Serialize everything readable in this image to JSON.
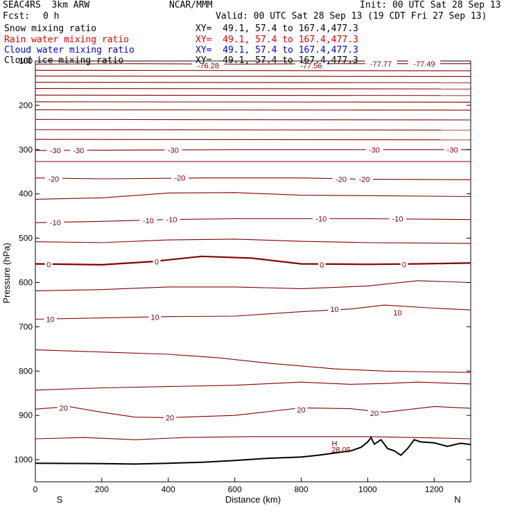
{
  "header": {
    "model": "SEAC4RS  3km ARW",
    "org": "NCAR/MMM",
    "init": "Init: 00 UTC Sat 28 Sep 13",
    "fcst_label": "Fcst:",
    "fcst_value": "0 h",
    "valid": "Valid: 00 UTC Sat 28 Sep 13 (19 CDT Fri 27 Sep 13)"
  },
  "fields": [
    {
      "name": "Snow mixing ratio",
      "xy": "XY=  49.1, 57.4 to 167.4,477.3",
      "color": "#000000"
    },
    {
      "name": "Rain water mixing ratio",
      "xy": "XY=  49.1, 57.4 to 167.4,477.3",
      "color": "#e00000"
    },
    {
      "name": "Cloud water mixing ratio",
      "xy": "XY=  49.1, 57.4 to 167.4,477.3",
      "color": "#0000d8"
    },
    {
      "name": "Cloud ice mixing ratio",
      "xy": "XY=  49.1, 57.4 to 167.4,477.3",
      "color": "#000000"
    }
  ],
  "colors": {
    "contour": "#800000",
    "terrain": "#000000",
    "axis": "#000000"
  },
  "chart_data": {
    "type": "line",
    "title": "",
    "xlabel": "Distance (km)",
    "ylabel": "Pressure (hPa)",
    "xlim": [
      0,
      1310
    ],
    "ylim": [
      1050,
      100
    ],
    "x_ticks": [
      0,
      200,
      400,
      600,
      800,
      1000,
      1200
    ],
    "y_ticks": [
      100,
      200,
      300,
      400,
      500,
      600,
      700,
      800,
      900,
      1000
    ],
    "x_end_labels": {
      "left": "S",
      "right": "N"
    },
    "grid": false,
    "series": [
      {
        "level": "-76.28",
        "points": [
          [
            0,
            107
          ],
          [
            300,
            106
          ],
          [
            600,
            107
          ],
          [
            900,
            106
          ],
          [
            1310,
            106
          ]
        ]
      },
      {
        "level": "",
        "points": [
          [
            0,
            121
          ],
          [
            1310,
            122
          ]
        ]
      },
      {
        "level": "",
        "points": [
          [
            0,
            134
          ],
          [
            1310,
            135
          ]
        ]
      },
      {
        "level": "",
        "points": [
          [
            0,
            148
          ],
          [
            1310,
            149
          ]
        ]
      },
      {
        "level": "",
        "points": [
          [
            0,
            162
          ],
          [
            1310,
            163
          ]
        ]
      },
      {
        "level": "",
        "points": [
          [
            0,
            177
          ],
          [
            1310,
            178
          ]
        ]
      },
      {
        "level": "",
        "points": [
          [
            0,
            192
          ],
          [
            1310,
            193
          ]
        ]
      },
      {
        "level": "",
        "points": [
          [
            0,
            210
          ],
          [
            1310,
            211
          ]
        ]
      },
      {
        "level": "",
        "points": [
          [
            0,
            232
          ],
          [
            1310,
            233
          ]
        ]
      },
      {
        "level": "",
        "points": [
          [
            0,
            255
          ],
          [
            1310,
            256
          ]
        ]
      },
      {
        "level": "",
        "points": [
          [
            0,
            277
          ],
          [
            1310,
            278
          ]
        ]
      },
      {
        "level": "-30",
        "points": [
          [
            0,
            302
          ],
          [
            300,
            301
          ],
          [
            600,
            300
          ],
          [
            900,
            300
          ],
          [
            1310,
            300
          ]
        ]
      },
      {
        "level": "",
        "points": [
          [
            0,
            327
          ],
          [
            1310,
            327
          ]
        ]
      },
      {
        "level": "-20",
        "points": [
          [
            0,
            364
          ],
          [
            200,
            366
          ],
          [
            500,
            364
          ],
          [
            800,
            364
          ],
          [
            1000,
            367
          ],
          [
            1310,
            368
          ]
        ]
      },
      {
        "level": "",
        "points": [
          [
            0,
            412
          ],
          [
            200,
            409
          ],
          [
            400,
            398
          ],
          [
            600,
            397
          ],
          [
            800,
            403
          ],
          [
            1000,
            404
          ],
          [
            1310,
            406
          ]
        ]
      },
      {
        "level": "-10",
        "points": [
          [
            0,
            465
          ],
          [
            200,
            462
          ],
          [
            400,
            458
          ],
          [
            600,
            456
          ],
          [
            800,
            456
          ],
          [
            1000,
            456
          ],
          [
            1310,
            458
          ]
        ]
      },
      {
        "level": "",
        "points": [
          [
            0,
            508
          ],
          [
            200,
            510
          ],
          [
            400,
            504
          ],
          [
            600,
            502
          ],
          [
            800,
            507
          ],
          [
            1000,
            510
          ],
          [
            1310,
            512
          ]
        ]
      },
      {
        "level": "0",
        "points": [
          [
            0,
            558
          ],
          [
            200,
            560
          ],
          [
            350,
            553
          ],
          [
            500,
            541
          ],
          [
            650,
            545
          ],
          [
            800,
            558
          ],
          [
            1000,
            559
          ],
          [
            1150,
            558
          ],
          [
            1310,
            556
          ]
        ]
      },
      {
        "level": "",
        "points": [
          [
            0,
            619
          ],
          [
            200,
            616
          ],
          [
            400,
            610
          ],
          [
            600,
            610
          ],
          [
            800,
            614
          ],
          [
            1000,
            608
          ],
          [
            1150,
            596
          ],
          [
            1310,
            600
          ]
        ]
      },
      {
        "level": "10",
        "points": [
          [
            0,
            683
          ],
          [
            200,
            680
          ],
          [
            400,
            677
          ],
          [
            600,
            676
          ],
          [
            800,
            666
          ],
          [
            950,
            660
          ],
          [
            1050,
            651
          ],
          [
            1200,
            658
          ],
          [
            1310,
            662
          ]
        ]
      },
      {
        "level": "",
        "points": [
          [
            0,
            752
          ],
          [
            200,
            757
          ],
          [
            400,
            762
          ],
          [
            550,
            770
          ],
          [
            700,
            782
          ],
          [
            900,
            795
          ],
          [
            1050,
            800
          ],
          [
            1200,
            802
          ],
          [
            1310,
            803
          ]
        ]
      },
      {
        "level": "",
        "points": [
          [
            0,
            843
          ],
          [
            200,
            838
          ],
          [
            400,
            835
          ],
          [
            600,
            832
          ],
          [
            800,
            825
          ],
          [
            950,
            830
          ],
          [
            1050,
            828
          ],
          [
            1150,
            825
          ],
          [
            1310,
            829
          ]
        ]
      },
      {
        "level": "20",
        "points": [
          [
            0,
            886
          ],
          [
            100,
            880
          ],
          [
            200,
            893
          ],
          [
            300,
            904
          ],
          [
            400,
            905
          ],
          [
            600,
            900
          ],
          [
            800,
            883
          ],
          [
            950,
            885
          ],
          [
            1050,
            893
          ],
          [
            1200,
            880
          ],
          [
            1310,
            884
          ]
        ]
      },
      {
        "level": "",
        "points": [
          [
            0,
            953
          ],
          [
            150,
            950
          ],
          [
            300,
            955
          ],
          [
            450,
            950
          ],
          [
            650,
            948
          ],
          [
            800,
            948
          ],
          [
            1000,
            948
          ],
          [
            1200,
            951
          ],
          [
            1310,
            953
          ]
        ]
      }
    ],
    "terrain": [
      [
        0,
        1008
      ],
      [
        200,
        1009
      ],
      [
        300,
        1010
      ],
      [
        400,
        1008
      ],
      [
        500,
        1006
      ],
      [
        600,
        1002
      ],
      [
        700,
        997
      ],
      [
        800,
        994
      ],
      [
        850,
        990
      ],
      [
        900,
        985
      ],
      [
        950,
        980
      ],
      [
        980,
        972
      ],
      [
        1000,
        960
      ],
      [
        1010,
        950
      ],
      [
        1020,
        965
      ],
      [
        1040,
        955
      ],
      [
        1060,
        975
      ],
      [
        1080,
        980
      ],
      [
        1100,
        990
      ],
      [
        1120,
        975
      ],
      [
        1140,
        955
      ],
      [
        1160,
        960
      ],
      [
        1200,
        962
      ],
      [
        1240,
        970
      ],
      [
        1280,
        963
      ],
      [
        1310,
        966
      ]
    ],
    "annotations": [
      {
        "text": "-76.28",
        "x": 520,
        "y": 110
      },
      {
        "text": "-77.56",
        "x": 830,
        "y": 110
      },
      {
        "text": "-77.77",
        "x": 1040,
        "y": 106
      },
      {
        "text": "-77.49",
        "x": 1170,
        "y": 106
      },
      {
        "text": "-30",
        "x": 60,
        "y": 302
      },
      {
        "text": "-30",
        "x": 130,
        "y": 302
      },
      {
        "text": "-30",
        "x": 415,
        "y": 301
      },
      {
        "text": "-30",
        "x": 1020,
        "y": 300
      },
      {
        "text": "-30",
        "x": 1255,
        "y": 300
      },
      {
        "text": "-20",
        "x": 55,
        "y": 366
      },
      {
        "text": "-20",
        "x": 435,
        "y": 364
      },
      {
        "text": "-20",
        "x": 920,
        "y": 367
      },
      {
        "text": "-20",
        "x": 990,
        "y": 367
      },
      {
        "text": "-10",
        "x": 60,
        "y": 465
      },
      {
        "text": "-10",
        "x": 340,
        "y": 460
      },
      {
        "text": "-10",
        "x": 410,
        "y": 458
      },
      {
        "text": "-10",
        "x": 860,
        "y": 456
      },
      {
        "text": "-10",
        "x": 1090,
        "y": 456
      },
      {
        "text": "0",
        "x": 40,
        "y": 559
      },
      {
        "text": "0",
        "x": 365,
        "y": 553
      },
      {
        "text": "0",
        "x": 862,
        "y": 560
      },
      {
        "text": "0",
        "x": 1110,
        "y": 559
      },
      {
        "text": "10",
        "x": 45,
        "y": 683
      },
      {
        "text": "10",
        "x": 360,
        "y": 678
      },
      {
        "text": "10",
        "x": 900,
        "y": 660
      },
      {
        "text": "10",
        "x": 1090,
        "y": 668
      },
      {
        "text": "20",
        "x": 85,
        "y": 883
      },
      {
        "text": "20",
        "x": 405,
        "y": 905
      },
      {
        "text": "20",
        "x": 800,
        "y": 887
      },
      {
        "text": "20",
        "x": 1020,
        "y": 895
      },
      {
        "text": "H",
        "x": 900,
        "y": 963
      },
      {
        "text": "28.05",
        "x": 920,
        "y": 977
      }
    ]
  }
}
